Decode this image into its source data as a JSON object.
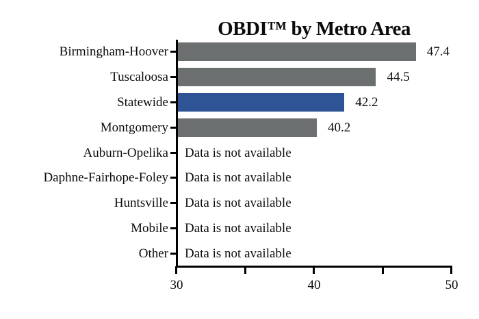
{
  "chart_data": {
    "type": "bar",
    "orientation": "horizontal",
    "title": "OBDI™ by Metro Area",
    "categories": [
      "Birmingham-Hoover",
      "Tuscaloosa",
      "Statewide",
      "Montgomery",
      "Auburn-Opelika",
      "Daphne-Fairhope-Foley",
      "Huntsville",
      "Mobile",
      "Other"
    ],
    "values": [
      47.4,
      44.5,
      42.2,
      40.2,
      null,
      null,
      null,
      null,
      null
    ],
    "value_labels": [
      "47.4",
      "44.5",
      "42.2",
      "40.2",
      null,
      null,
      null,
      null,
      null
    ],
    "missing_value_text": "Data is not available",
    "xlim": [
      30,
      50
    ],
    "x_ticks": [
      30,
      35,
      40,
      45,
      50
    ],
    "x_labeled_ticks": [
      {
        "value": 30,
        "label": "30"
      },
      {
        "value": 40,
        "label": "40"
      },
      {
        "value": 50,
        "label": "50"
      }
    ],
    "highlight_index": 2,
    "highlight_category": "Statewide",
    "bar_color": "#6C6F6F",
    "highlight_color": "#2E5496",
    "axis_color": "#000000",
    "text_color": "#0c0c0c",
    "grid": false,
    "legend": false
  }
}
